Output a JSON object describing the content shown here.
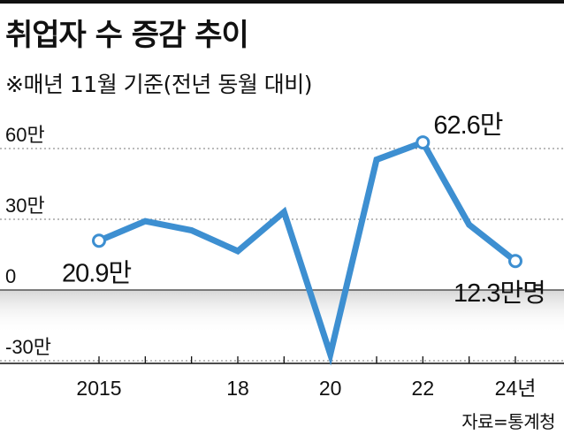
{
  "title": "취업자 수 증감 추이",
  "subtitle": "※매년 11월 기준(전년 동월 대비)",
  "source": "자료=통계청",
  "colors": {
    "line": "#3d8fd1",
    "grid": "#777777",
    "text": "#111111"
  },
  "chart_data": {
    "type": "line",
    "x": [
      2015,
      2016,
      2017,
      2018,
      2019,
      2020,
      2021,
      2022,
      2023,
      2024
    ],
    "values": [
      20.9,
      29.2,
      25.3,
      16.5,
      33.1,
      -27.3,
      55.3,
      62.6,
      27.7,
      12.3
    ],
    "ylim": [
      -30,
      60
    ],
    "yticks": [
      {
        "value": 60,
        "label": "60만"
      },
      {
        "value": 30,
        "label": "30만"
      },
      {
        "value": 0,
        "label": "0"
      },
      {
        "value": -30,
        "label": "-30만"
      }
    ],
    "xticks": [
      {
        "value": 2015,
        "label": "2015"
      },
      {
        "value": 2018,
        "label": "18"
      },
      {
        "value": 2020,
        "label": "20"
      },
      {
        "value": 2022,
        "label": "22"
      },
      {
        "value": 2024,
        "label": "24년"
      }
    ],
    "annotations": [
      {
        "x": 2015,
        "y": 20.9,
        "label": "20.9만"
      },
      {
        "x": 2022,
        "y": 62.6,
        "label": "62.6만"
      },
      {
        "x": 2024,
        "y": 12.3,
        "label": "12.3만명"
      }
    ],
    "grid": true,
    "legend": "none"
  }
}
